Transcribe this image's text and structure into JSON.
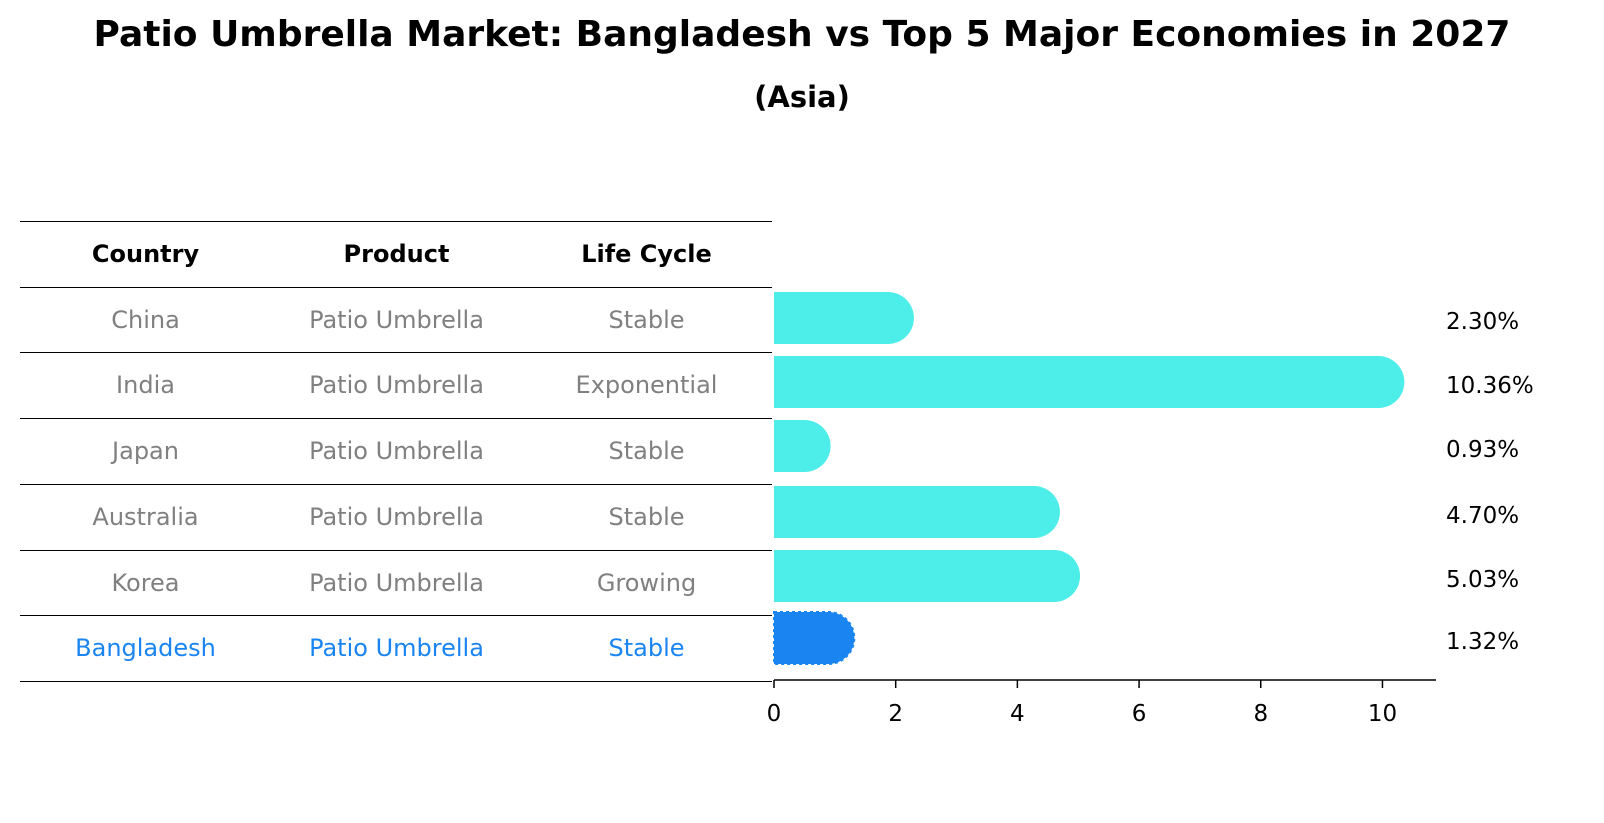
{
  "title": "Patio Umbrella Market: Bangladesh vs Top 5 Major Economies in 2027",
  "subtitle": "(Asia)",
  "colors": {
    "bar": "#4DEEEA",
    "highlight": "#1A85F0",
    "muted_text": "#808080",
    "highlight_text": "#1A85F0"
  },
  "table": {
    "headers": [
      "Country",
      "Product",
      "Life Cycle"
    ],
    "rows": [
      {
        "country": "China",
        "product": "Patio Umbrella",
        "life_cycle": "Stable",
        "highlight": false
      },
      {
        "country": "India",
        "product": "Patio Umbrella",
        "life_cycle": "Exponential",
        "highlight": false
      },
      {
        "country": "Japan",
        "product": "Patio Umbrella",
        "life_cycle": "Stable",
        "highlight": false
      },
      {
        "country": "Australia",
        "product": "Patio Umbrella",
        "life_cycle": "Stable",
        "highlight": false
      },
      {
        "country": "Korea",
        "product": "Patio Umbrella",
        "life_cycle": "Growing",
        "highlight": false
      },
      {
        "country": "Bangladesh",
        "product": "Patio Umbrella",
        "life_cycle": "Stable",
        "highlight": true
      }
    ]
  },
  "chart_data": {
    "type": "bar",
    "orientation": "horizontal",
    "categories": [
      "China",
      "India",
      "Japan",
      "Australia",
      "Korea",
      "Bangladesh"
    ],
    "values": [
      2.3,
      10.36,
      0.93,
      4.7,
      5.03,
      1.32
    ],
    "value_labels": [
      "2.30%",
      "10.36%",
      "0.93%",
      "4.70%",
      "5.03%",
      "1.32%"
    ],
    "highlight_index": 5,
    "xlim": [
      0,
      10.88
    ],
    "xticks": [
      0,
      2,
      4,
      6,
      8,
      10
    ],
    "xlabel": "",
    "ylabel": "",
    "grid": false
  }
}
